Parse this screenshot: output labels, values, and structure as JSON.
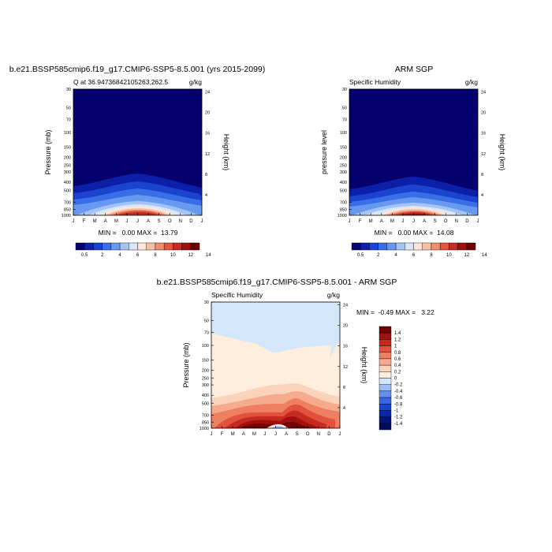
{
  "chart_data": [
    {
      "type": "heatmap",
      "title": "b.e21.BSSP585cmip6.f19_g17.CMIP6-SSP5-8.5.001 (yrs 2015-2099)",
      "subtitle_left": "Q at 36.94736842105263,262.5",
      "units": "g/kg",
      "ylabel": "Pressure (mb)",
      "ylabel_right": "Height (km)",
      "x_ticks": [
        "J",
        "F",
        "M",
        "A",
        "M",
        "J",
        "J",
        "A",
        "S",
        "O",
        "N",
        "D",
        "J"
      ],
      "y_ticks": [
        "30",
        "50",
        "70",
        "100",
        "150",
        "200",
        "250",
        "300",
        "400",
        "500",
        "700",
        "850",
        "1000"
      ],
      "height_ticks": [
        "24",
        "20",
        "16",
        "12",
        "8",
        "4"
      ],
      "min_max": "MIN =   0.00 MAX =  13.79",
      "min": 0.0,
      "max": 13.79,
      "colorbar_labels": [
        "0.5",
        "2",
        "4",
        "6",
        "8",
        "10",
        "12",
        "14"
      ]
    },
    {
      "type": "heatmap",
      "title": "ARM SGP",
      "subtitle_left": "Specific Humidity",
      "units": "g/kg",
      "ylabel": "pressure level",
      "ylabel_right": "Height (km)",
      "x_ticks": [
        "J",
        "F",
        "M",
        "A",
        "M",
        "J",
        "J",
        "A",
        "S",
        "O",
        "N",
        "D",
        "J"
      ],
      "y_ticks": [
        "30",
        "50",
        "70",
        "100",
        "150",
        "200",
        "250",
        "300",
        "400",
        "500",
        "700",
        "850",
        "1000"
      ],
      "height_ticks": [
        "24",
        "20",
        "16",
        "12",
        "8",
        "4"
      ],
      "min_max": "MIN =   0.00 MAX =  14.08",
      "min": 0.0,
      "max": 14.08,
      "colorbar_labels": [
        "0.5",
        "2",
        "4",
        "6",
        "8",
        "10",
        "12",
        "14"
      ]
    },
    {
      "type": "heatmap",
      "title": "b.e21.BSSP585cmip6.f19_g17.CMIP6-SSP5-8.5.001 - ARM SGP",
      "subtitle_left": "Specific Humidity",
      "units": "g/kg",
      "ylabel": "Pressure (mb)",
      "ylabel_right": "Height (km)",
      "x_ticks": [
        "J",
        "F",
        "M",
        "A",
        "M",
        "J",
        "J",
        "A",
        "S",
        "O",
        "N",
        "D",
        "J"
      ],
      "y_ticks": [
        "30",
        "50",
        "70",
        "100",
        "150",
        "200",
        "250",
        "300",
        "400",
        "500",
        "700",
        "850",
        "1000"
      ],
      "height_ticks": [
        "24",
        "20",
        "16",
        "12",
        "8",
        "4"
      ],
      "min_max": "MIN =  -0.49 MAX =   3.22",
      "min": -0.49,
      "max": 3.22,
      "colorbar_labels": [
        "1.4",
        "1.2",
        "1",
        "0.8",
        "0.6",
        "0.4",
        "0.2",
        "0",
        "-0.2",
        "-0.4",
        "-0.6",
        "-0.8",
        "-1",
        "-1.2",
        "-1.4"
      ]
    }
  ],
  "colors": {
    "seq_scale": [
      "#04006e",
      "#0c1fa8",
      "#1a44d0",
      "#3a6ee6",
      "#6799f0",
      "#a3c4f5",
      "#d8e7fb",
      "#fbe6d9",
      "#f6c0a4",
      "#ef8d6d",
      "#e2563f",
      "#c42b22",
      "#98110f",
      "#6b0000"
    ],
    "diff_scale": [
      "#000a5a",
      "#00157e",
      "#0827a9",
      "#1844cf",
      "#3966e4",
      "#6690ee",
      "#9ebcf5",
      "#d3e6fa",
      "#ffeedd",
      "#fbd2ba",
      "#f6ab8e",
      "#ef7f62",
      "#e1513c",
      "#c52a20",
      "#a1100e",
      "#730000"
    ]
  }
}
